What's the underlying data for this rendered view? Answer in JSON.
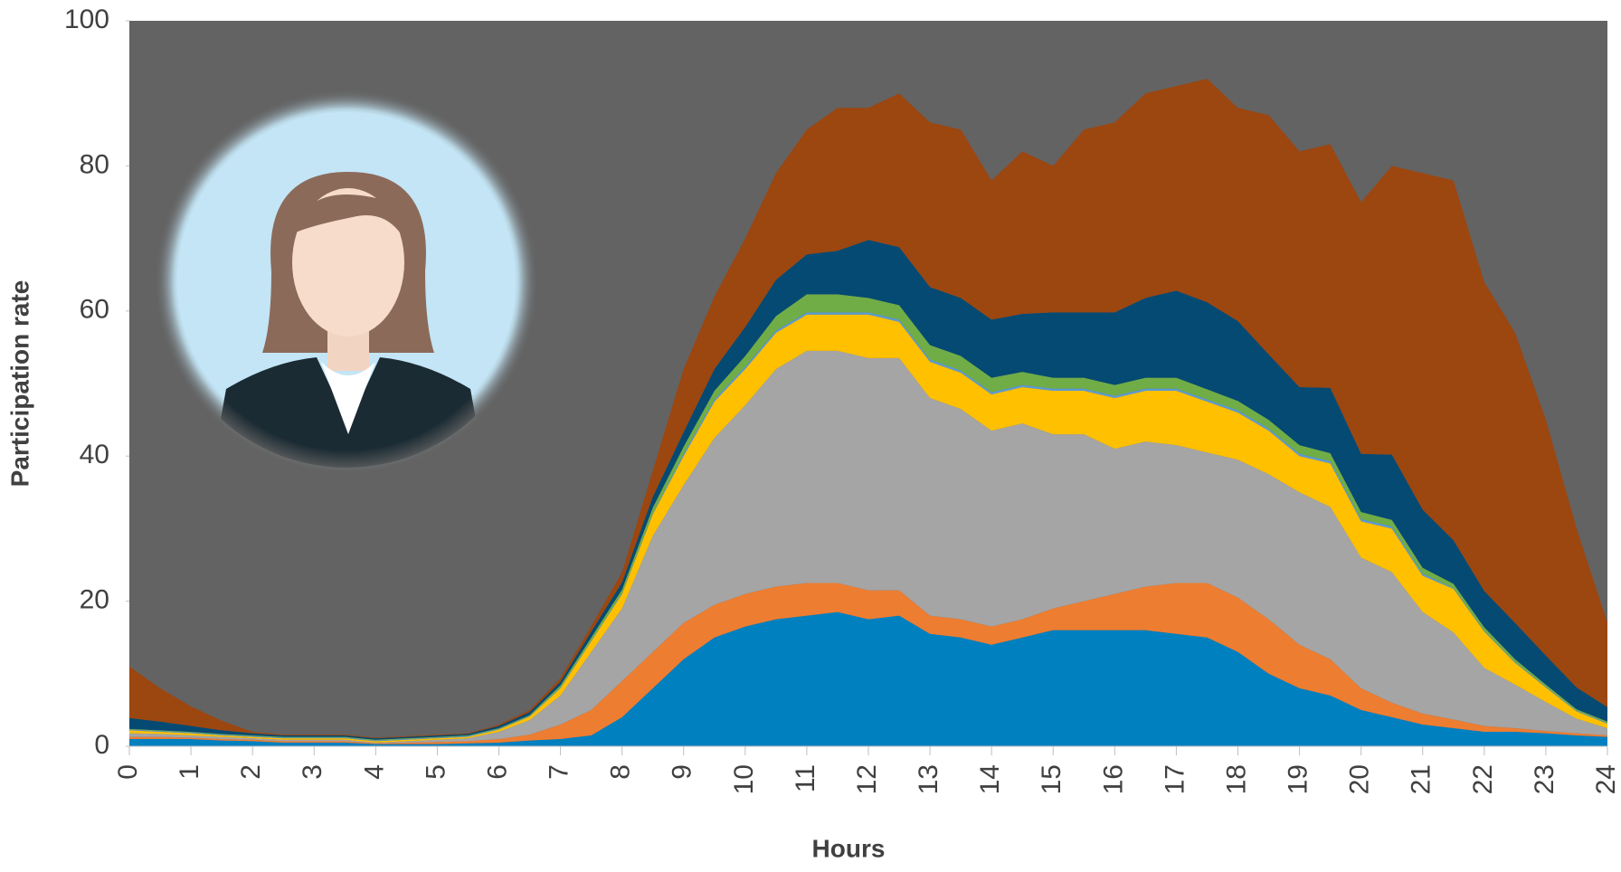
{
  "chart_data": {
    "type": "stacked-area",
    "x_label": "Hours",
    "y_label": "Participation rate",
    "x": [
      0,
      0.5,
      1,
      1.5,
      2,
      2.5,
      3,
      3.5,
      4,
      4.5,
      5,
      5.5,
      6,
      6.5,
      7,
      7.5,
      8,
      8.5,
      9,
      9.5,
      10,
      10.5,
      11,
      11.5,
      12,
      12.5,
      13,
      13.5,
      14,
      14.5,
      15,
      15.5,
      16,
      16.5,
      17,
      17.5,
      18,
      18.5,
      19,
      19.5,
      20,
      20.5,
      21,
      21.5,
      22,
      22.5,
      23,
      23.5,
      24
    ],
    "xlim": [
      0,
      24
    ],
    "xticks": [
      0,
      1,
      2,
      3,
      4,
      5,
      6,
      7,
      8,
      9,
      10,
      11,
      12,
      13,
      14,
      15,
      16,
      17,
      18,
      19,
      20,
      21,
      22,
      23,
      24
    ],
    "ylim": [
      0,
      100
    ],
    "yticks": [
      0,
      20,
      40,
      60,
      80,
      100
    ],
    "series": [
      {
        "color": "#0180c0",
        "values": [
          1,
          1,
          1,
          0.8,
          0.7,
          0.5,
          0.5,
          0.5,
          0.3,
          0.3,
          0.3,
          0.4,
          0.5,
          0.8,
          1,
          1.5,
          4,
          8,
          12,
          15,
          16.5,
          17.5,
          18,
          18.5,
          17.5,
          18,
          15.5,
          15,
          14,
          15,
          16,
          16,
          16,
          16,
          15.5,
          15,
          13,
          10,
          8,
          7,
          5,
          4,
          3,
          2.5,
          2,
          2,
          1.8,
          1.5,
          1.3
        ]
      },
      {
        "color": "#ed7d31",
        "values": [
          0.3,
          0.3,
          0.2,
          0.2,
          0.2,
          0.2,
          0.2,
          0.2,
          0.1,
          0.2,
          0.3,
          0.3,
          0.5,
          0.8,
          2,
          3.5,
          5,
          5,
          5,
          4.5,
          4.5,
          4.5,
          4.5,
          4,
          4,
          3.5,
          2.5,
          2.5,
          2.5,
          2.5,
          3,
          4,
          5,
          6,
          7,
          7.5,
          7.5,
          7.5,
          6,
          5,
          3,
          2,
          1.5,
          1.2,
          0.8,
          0.5,
          0.3,
          0.3,
          0.2
        ]
      },
      {
        "color": "#a5a5a5",
        "values": [
          0.5,
          0.4,
          0.3,
          0.3,
          0.2,
          0.2,
          0.2,
          0.2,
          0.1,
          0.2,
          0.3,
          0.4,
          1,
          2,
          4,
          8,
          10,
          16,
          19,
          23,
          26,
          30,
          32,
          32,
          32,
          32,
          30,
          29,
          27,
          27,
          24,
          23,
          20,
          20,
          19,
          18,
          19,
          20,
          21,
          21,
          18,
          18,
          14,
          12,
          8,
          6,
          4,
          2,
          1
        ]
      },
      {
        "color": "#ffc000",
        "values": [
          0.4,
          0.3,
          0.3,
          0.2,
          0.2,
          0.2,
          0.2,
          0.2,
          0.2,
          0.2,
          0.2,
          0.2,
          0.3,
          0.5,
          1,
          1.5,
          2,
          3,
          4,
          5,
          5,
          5,
          5,
          5,
          6,
          5,
          5,
          5,
          5,
          5,
          6,
          6,
          7,
          7,
          7.5,
          7,
          6.5,
          6,
          5,
          6,
          5,
          6,
          5,
          6,
          5,
          3,
          2,
          1,
          0.6
        ]
      },
      {
        "color": "#5b9bd5",
        "values": [
          0.1,
          0.1,
          0.1,
          0.1,
          0.1,
          0.1,
          0.1,
          0.1,
          0.1,
          0.1,
          0.1,
          0.1,
          0.1,
          0.1,
          0.1,
          0.1,
          0.1,
          0.1,
          0.3,
          0.3,
          0.3,
          0.3,
          0.3,
          0.3,
          0.3,
          0.3,
          0.3,
          0.3,
          0.3,
          0.3,
          0.3,
          0.3,
          0.3,
          0.3,
          0.3,
          0.3,
          0.3,
          0.3,
          0.3,
          0.3,
          0.3,
          0.3,
          0.3,
          0.1,
          0.1,
          0.1,
          0.1,
          0.1,
          0.1
        ]
      },
      {
        "color": "#70ad47",
        "values": [
          0.1,
          0.1,
          0.1,
          0.1,
          0.1,
          0.1,
          0.1,
          0.1,
          0.1,
          0.1,
          0.1,
          0.1,
          0.1,
          0.1,
          0.3,
          0.4,
          0.5,
          0.8,
          1,
          1.2,
          1.5,
          2,
          2.5,
          2.5,
          2,
          2,
          2,
          2,
          2,
          1.8,
          1.5,
          1.5,
          1.5,
          1.5,
          1.5,
          1.4,
          1.3,
          1.2,
          1.2,
          1.1,
          1,
          0.9,
          0.8,
          0.6,
          0.5,
          0.4,
          0.3,
          0.2,
          0.2
        ]
      },
      {
        "color": "#044a73",
        "values": [
          1.5,
          1.2,
          0.8,
          0.5,
          0.3,
          0.2,
          0.2,
          0.2,
          0.2,
          0.2,
          0.2,
          0.2,
          0.3,
          0.4,
          0.5,
          0.8,
          1,
          1.5,
          2,
          3,
          4,
          5,
          5.5,
          6,
          8,
          8,
          8,
          8,
          8,
          8,
          9,
          9,
          10,
          11,
          12,
          12,
          11,
          9,
          8,
          9,
          8,
          9,
          8,
          6,
          5,
          5,
          4,
          3,
          2
        ]
      },
      {
        "color": "#9c4610",
        "values": [
          7.1,
          4.6,
          2.7,
          1.3,
          0.2,
          0.1,
          0.1,
          0.1,
          0.1,
          0.1,
          0.1,
          0.1,
          0.2,
          0.3,
          0.5,
          0.8,
          1.4,
          3.6,
          8.7,
          10,
          12.2,
          14.7,
          17.2,
          19.7,
          18.2,
          21.2,
          22.7,
          23.2,
          19.2,
          22.4,
          20.2,
          25.2,
          26.2,
          28.2,
          28.2,
          30.8,
          29.4,
          33,
          32.5,
          33.6,
          34.7,
          39.8,
          46.4,
          49.6,
          42.6,
          40,
          32.5,
          21.9,
          11.6
        ]
      }
    ]
  }
}
